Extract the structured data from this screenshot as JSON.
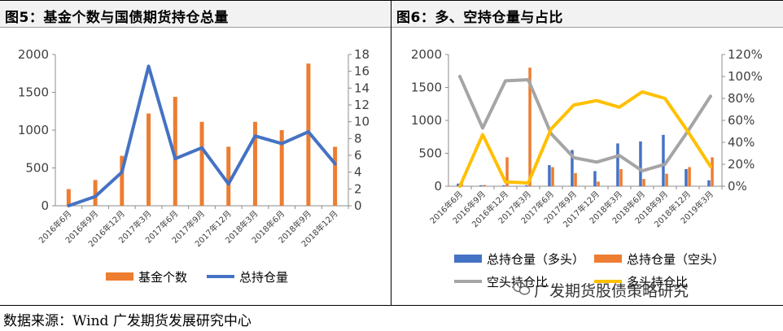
{
  "panels": {
    "left_title": "图5：基金个数与国债期货持仓总量",
    "right_title": "图6：多、空持仓量与占比"
  },
  "source": "数据来源：Wind 广发期货发展研究中心",
  "watermark": "广发期货股债策略研究",
  "colors": {
    "orange": "#ED7D31",
    "blue": "#4472C4",
    "gray": "#A5A5A5",
    "yellow": "#FFC000",
    "axis": "#404040"
  },
  "chart_data": [
    {
      "type": "bar",
      "categories": [
        "2016年6月",
        "2016年9月",
        "2016年12月",
        "2017年3月",
        "2017年6月",
        "2017年9月",
        "2017年12月",
        "2018年3月",
        "2018年6月",
        "2018年9月",
        "2018年12月"
      ],
      "left_ylim": [
        0,
        2000
      ],
      "left_ticks": [
        "0",
        "500",
        "1000",
        "1500",
        "2000"
      ],
      "right_ylim": [
        0,
        18
      ],
      "right_ticks": [
        "0",
        "2",
        "4",
        "6",
        "8",
        "10",
        "12",
        "14",
        "16",
        "18"
      ],
      "series": [
        {
          "name": "基金个数",
          "kind": "bar",
          "axis": "left",
          "color": "#ED7D31",
          "values": [
            220,
            340,
            660,
            1220,
            1440,
            1110,
            780,
            1110,
            1000,
            1880,
            780
          ]
        },
        {
          "name": "总持仓量",
          "kind": "line",
          "axis": "right",
          "color": "#4472C4",
          "values": [
            0,
            1.1,
            4,
            16.6,
            5.6,
            6.9,
            2.6,
            8.3,
            7.4,
            8.8,
            5.0
          ]
        }
      ],
      "legend": "bottom"
    },
    {
      "type": "bar",
      "categories": [
        "2016年6月",
        "2016年9月",
        "2016年12月",
        "2017年3月",
        "2017年6月",
        "2017年9月",
        "2017年12月",
        "2018年3月",
        "2018年6月",
        "2018年9月",
        "2018年12月",
        "2019年3月"
      ],
      "left_ylim": [
        0,
        2000
      ],
      "left_ticks": [
        "0",
        "500",
        "1000",
        "1500",
        "2000"
      ],
      "right_ylim": [
        0,
        1.2
      ],
      "right_ticks": [
        "0%",
        "20%",
        "40%",
        "60%",
        "80%",
        "100%",
        "120%"
      ],
      "series": [
        {
          "name": "总持仓量（多头）",
          "kind": "bar",
          "axis": "left",
          "color": "#4472C4",
          "values": [
            40,
            15,
            15,
            15,
            320,
            550,
            230,
            650,
            680,
            780,
            260,
            90
          ]
        },
        {
          "name": "总持仓量（空头）",
          "kind": "bar",
          "axis": "left",
          "color": "#ED7D31",
          "values": [
            50,
            20,
            440,
            1800,
            290,
            200,
            70,
            260,
            110,
            190,
            290,
            440
          ]
        },
        {
          "name": "空头持仓比",
          "kind": "line",
          "axis": "right",
          "color": "#A5A5A5",
          "values": [
            1.0,
            0.53,
            0.96,
            0.97,
            0.48,
            0.26,
            0.22,
            0.28,
            0.14,
            0.2,
            0.5,
            0.82
          ]
        },
        {
          "name": "多头持仓比",
          "kind": "line",
          "axis": "right",
          "color": "#FFC000",
          "values": [
            0,
            0.47,
            0.04,
            0.03,
            0.52,
            0.74,
            0.78,
            0.72,
            0.86,
            0.8,
            0.5,
            0.18
          ]
        }
      ],
      "legend": "bottom"
    }
  ]
}
